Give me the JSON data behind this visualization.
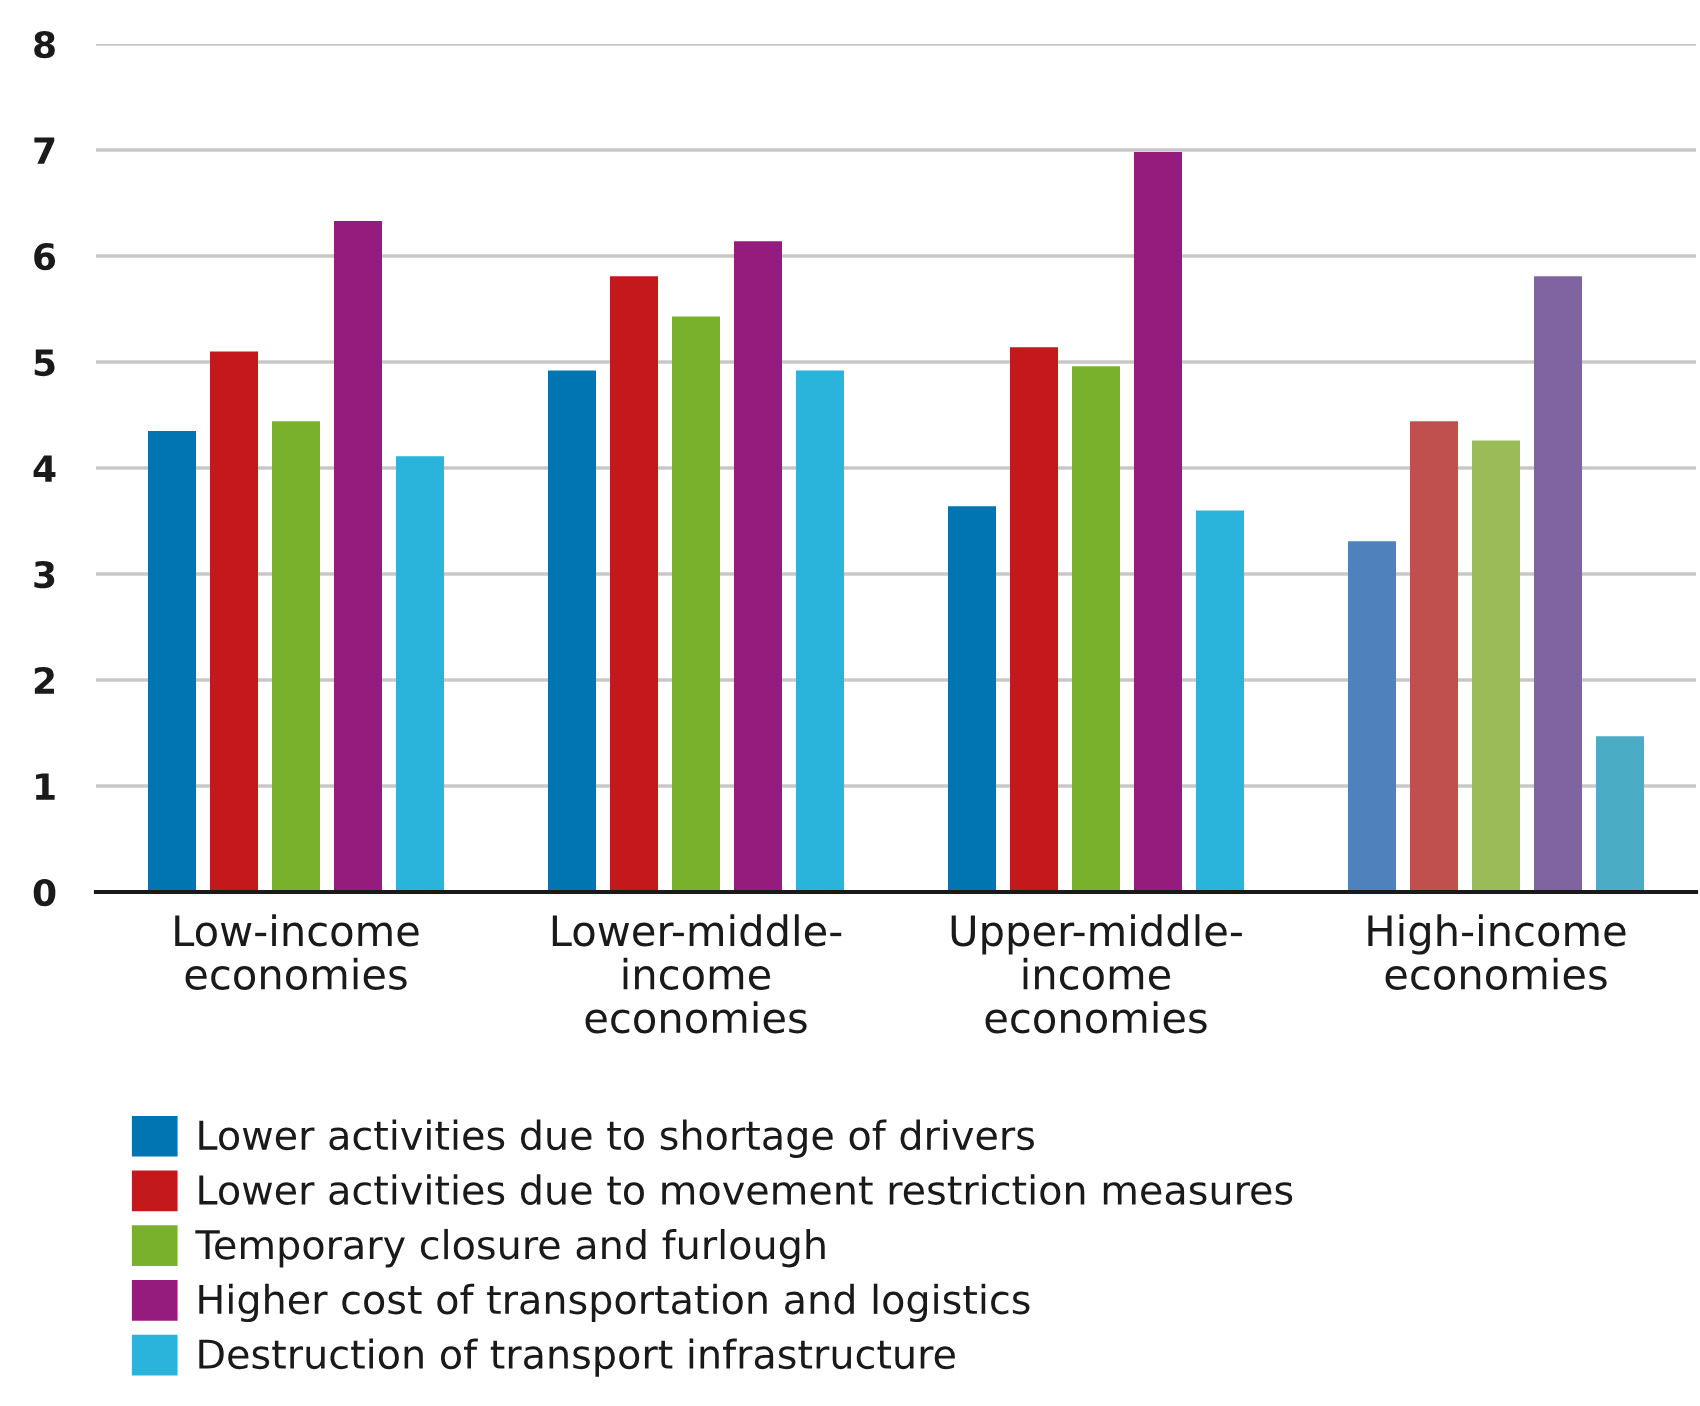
{
  "chart_data": {
    "type": "bar",
    "categories": [
      "Low-income\neconomies",
      "Lower-middle-\nincome\neconomies",
      "Upper-middle-\nincome\neconomies",
      "High-income\neconomies"
    ],
    "series": [
      {
        "name": "Lower activities due to shortage of drivers",
        "color": "#0075b2",
        "colors": [
          "#0075b2",
          "#0075b2",
          "#0075b2",
          "#4f81bd"
        ],
        "values": [
          4.35,
          4.92,
          3.64,
          3.31
        ]
      },
      {
        "name": "Lower activities due to movement restriction measures",
        "color": "#c4191c",
        "colors": [
          "#c4191c",
          "#c4191c",
          "#c4191c",
          "#c0504d"
        ],
        "values": [
          5.1,
          5.81,
          5.14,
          4.44
        ]
      },
      {
        "name": "Temporary closure and furlough",
        "color": "#79b12c",
        "colors": [
          "#79b12c",
          "#79b12c",
          "#79b12c",
          "#9bbb59"
        ],
        "values": [
          4.44,
          5.43,
          4.96,
          4.26
        ]
      },
      {
        "name": "Higher cost of transportation and logistics",
        "color": "#951c7c",
        "colors": [
          "#951c7c",
          "#951c7c",
          "#951c7c",
          "#8064a2"
        ],
        "values": [
          6.33,
          6.14,
          6.98,
          5.81
        ]
      },
      {
        "name": "Destruction of transport infrastructure",
        "color": "#2ab3db",
        "colors": [
          "#2ab3db",
          "#2ab3db",
          "#2ab3db",
          "#4bacc6"
        ],
        "values": [
          4.11,
          4.92,
          3.6,
          1.47
        ]
      }
    ],
    "ylim": [
      0,
      8
    ],
    "yticks": [
      0,
      1,
      2,
      3,
      4,
      5,
      6,
      7,
      8
    ],
    "grid": "y",
    "legend": "bottom"
  }
}
